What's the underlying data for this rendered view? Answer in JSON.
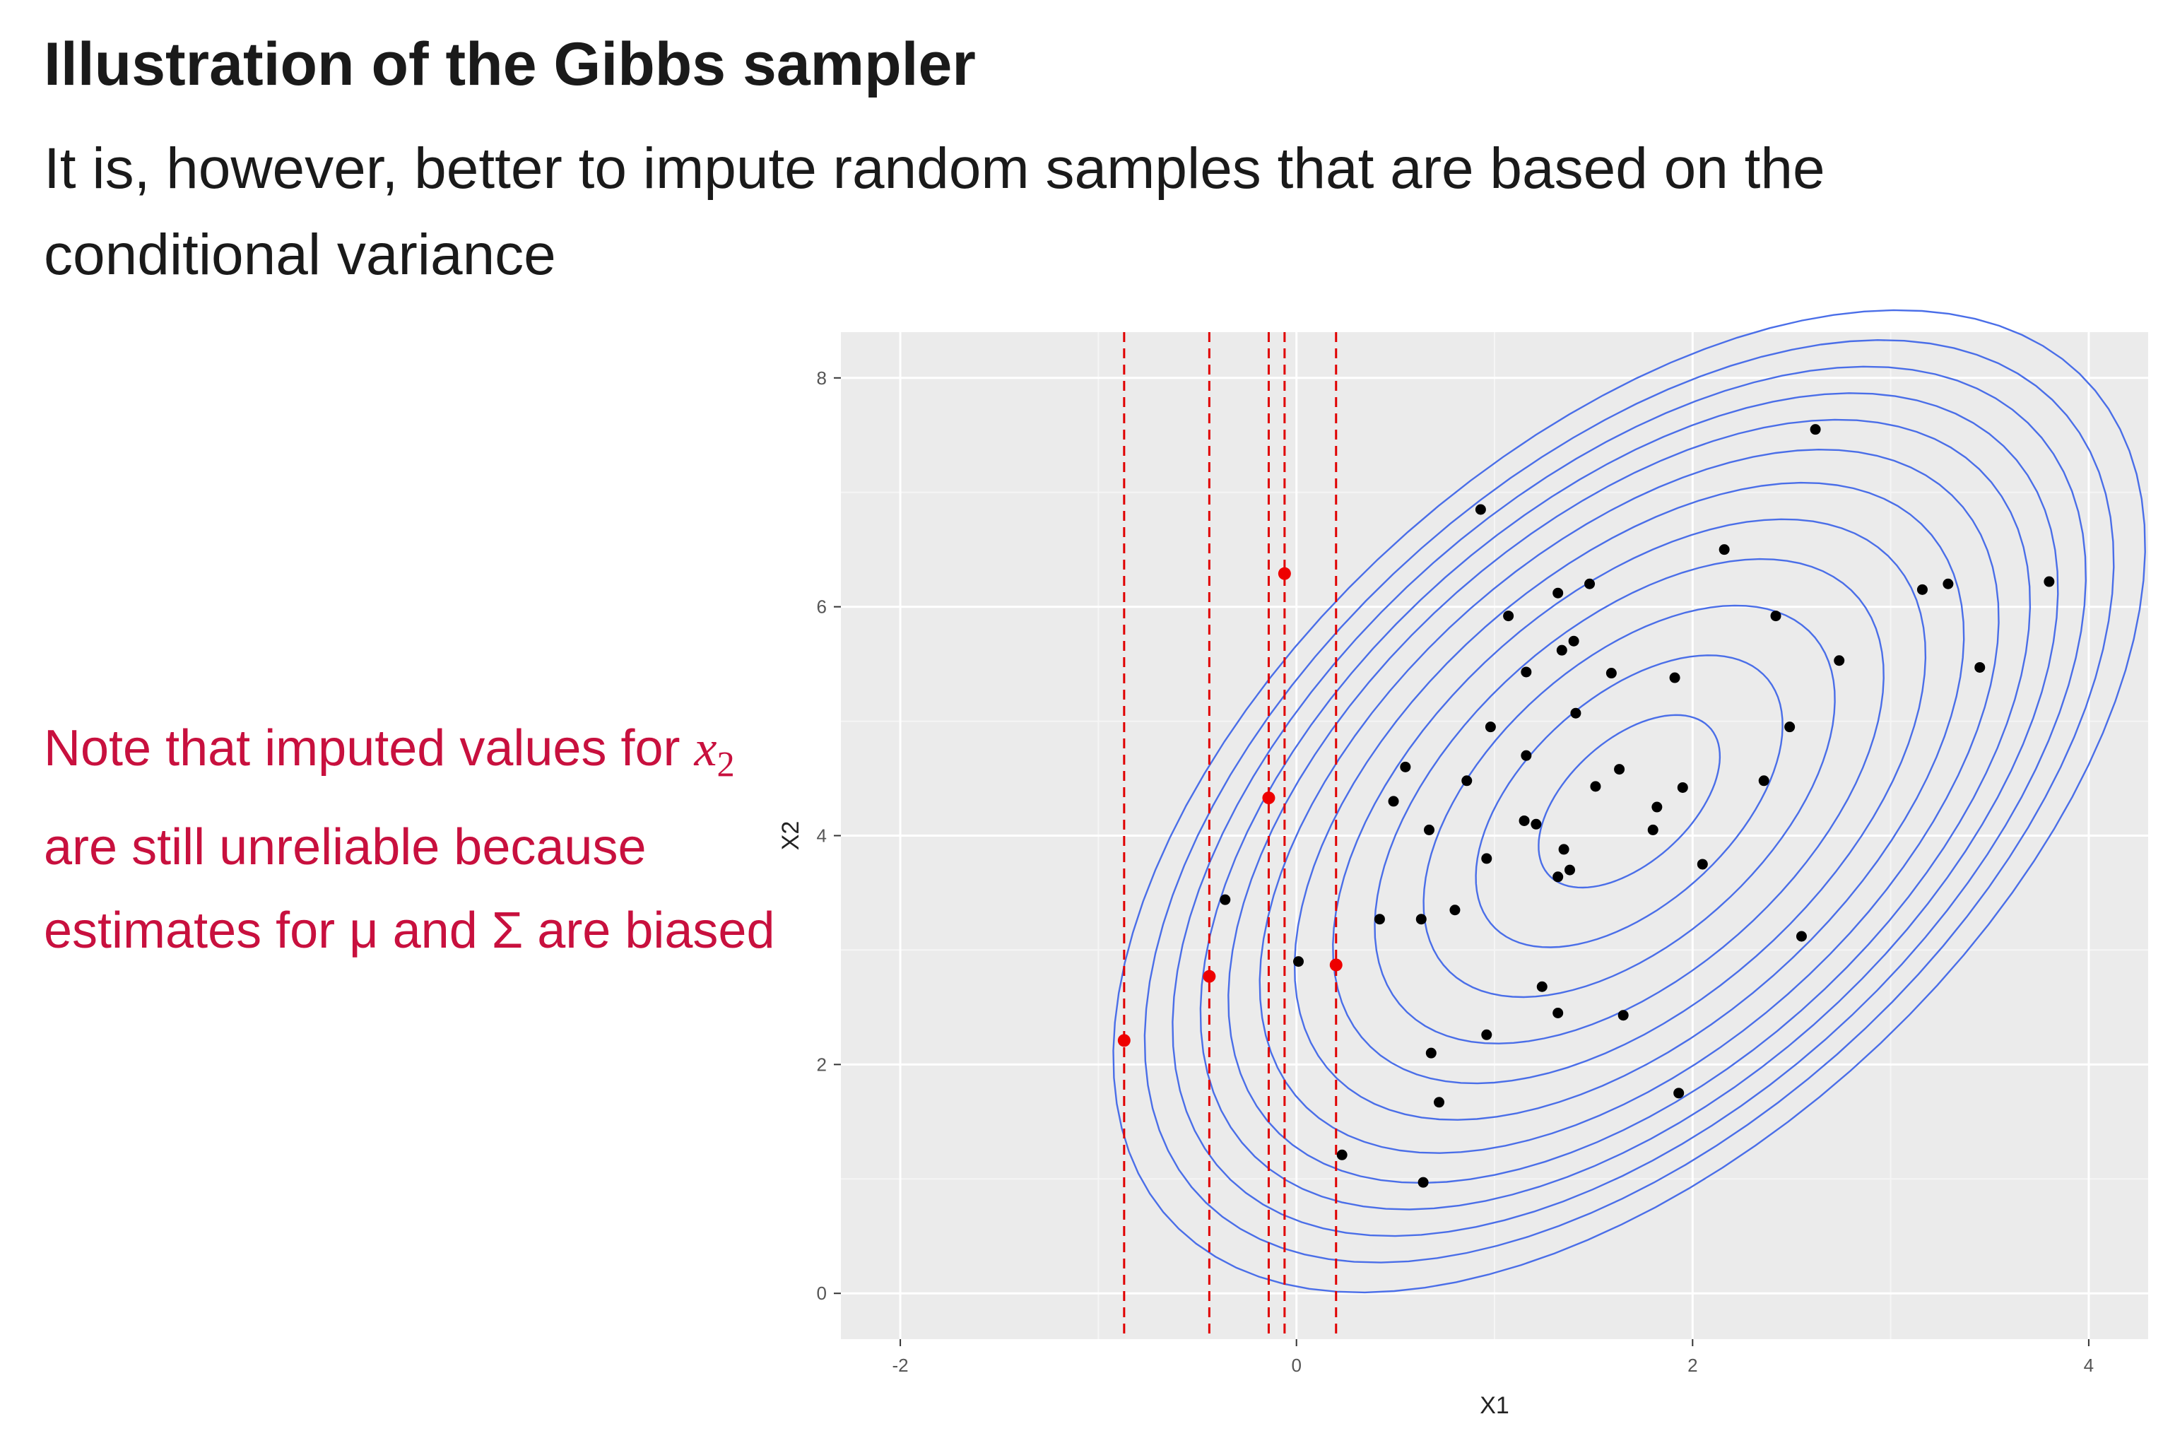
{
  "slide": {
    "title": "Illustration of the Gibbs sampler",
    "subtitle": "It is, however, better to impute random samples that are based on the conditional variance",
    "note": {
      "before": "Note that imputed values for ",
      "math_var": "x",
      "math_sub": "2",
      "after": " are still unreliable because estimates for μ and Σ are biased"
    }
  },
  "colors": {
    "panel": "#ebebeb",
    "grid_major": "#ffffff",
    "grid_minor": "#f5f5f5",
    "contour": "#4a6ee8",
    "points": "#000000",
    "imputed": "#ee0000",
    "vlines": "#e00000",
    "note_text": "#c8103e"
  },
  "chart_data": {
    "type": "scatter",
    "xlabel": "X1",
    "ylabel": "X2",
    "xlim": [
      -2.3,
      4.3
    ],
    "ylim": [
      -0.4,
      8.4
    ],
    "x_ticks": [
      -2,
      0,
      2,
      4
    ],
    "y_ticks": [
      0,
      2,
      4,
      6,
      8
    ],
    "grid": true,
    "points": [
      [
        2.62,
        7.55
      ],
      [
        0.93,
        6.85
      ],
      [
        2.16,
        6.5
      ],
      [
        3.8,
        6.22
      ],
      [
        3.29,
        6.2
      ],
      [
        3.16,
        6.15
      ],
      [
        1.48,
        6.2
      ],
      [
        1.32,
        6.12
      ],
      [
        1.07,
        5.92
      ],
      [
        2.42,
        5.92
      ],
      [
        1.4,
        5.7
      ],
      [
        1.34,
        5.62
      ],
      [
        2.74,
        5.53
      ],
      [
        3.45,
        5.47
      ],
      [
        1.16,
        5.43
      ],
      [
        1.59,
        5.42
      ],
      [
        1.91,
        5.38
      ],
      [
        1.41,
        5.07
      ],
      [
        0.98,
        4.95
      ],
      [
        2.49,
        4.95
      ],
      [
        1.16,
        4.7
      ],
      [
        0.55,
        4.6
      ],
      [
        1.63,
        4.58
      ],
      [
        0.86,
        4.48
      ],
      [
        2.36,
        4.48
      ],
      [
        1.51,
        4.43
      ],
      [
        1.95,
        4.42
      ],
      [
        0.49,
        4.3
      ],
      [
        1.82,
        4.25
      ],
      [
        1.15,
        4.13
      ],
      [
        1.21,
        4.1
      ],
      [
        0.67,
        4.05
      ],
      [
        1.8,
        4.05
      ],
      [
        1.35,
        3.88
      ],
      [
        0.96,
        3.8
      ],
      [
        2.05,
        3.75
      ],
      [
        1.38,
        3.7
      ],
      [
        1.32,
        3.64
      ],
      [
        0.8,
        3.35
      ],
      [
        0.42,
        3.27
      ],
      [
        0.63,
        3.27
      ],
      [
        2.55,
        3.12
      ],
      [
        0.01,
        2.9
      ],
      [
        1.24,
        2.68
      ],
      [
        1.32,
        2.45
      ],
      [
        1.65,
        2.43
      ],
      [
        0.96,
        2.26
      ],
      [
        0.68,
        2.1
      ],
      [
        1.93,
        1.75
      ],
      [
        0.72,
        1.67
      ],
      [
        0.23,
        1.21
      ],
      [
        0.64,
        0.97
      ],
      [
        -0.36,
        3.44
      ]
    ],
    "imputed_points": [
      [
        -0.87,
        2.21
      ],
      [
        -0.44,
        2.77
      ],
      [
        -0.14,
        4.33
      ],
      [
        -0.06,
        6.29
      ],
      [
        0.2,
        2.87
      ]
    ],
    "vertical_lines_x": [
      -0.87,
      -0.44,
      -0.14,
      -0.06,
      0.2
    ],
    "contours": {
      "center": [
        1.68,
        4.3
      ],
      "sd_x": 0.88,
      "sd_y": 1.45,
      "rho": 0.52,
      "levels": [
        0.52,
        0.88,
        1.18,
        1.46,
        1.7,
        1.92,
        2.12,
        2.3,
        2.46,
        2.62,
        2.78,
        2.96
      ]
    }
  }
}
